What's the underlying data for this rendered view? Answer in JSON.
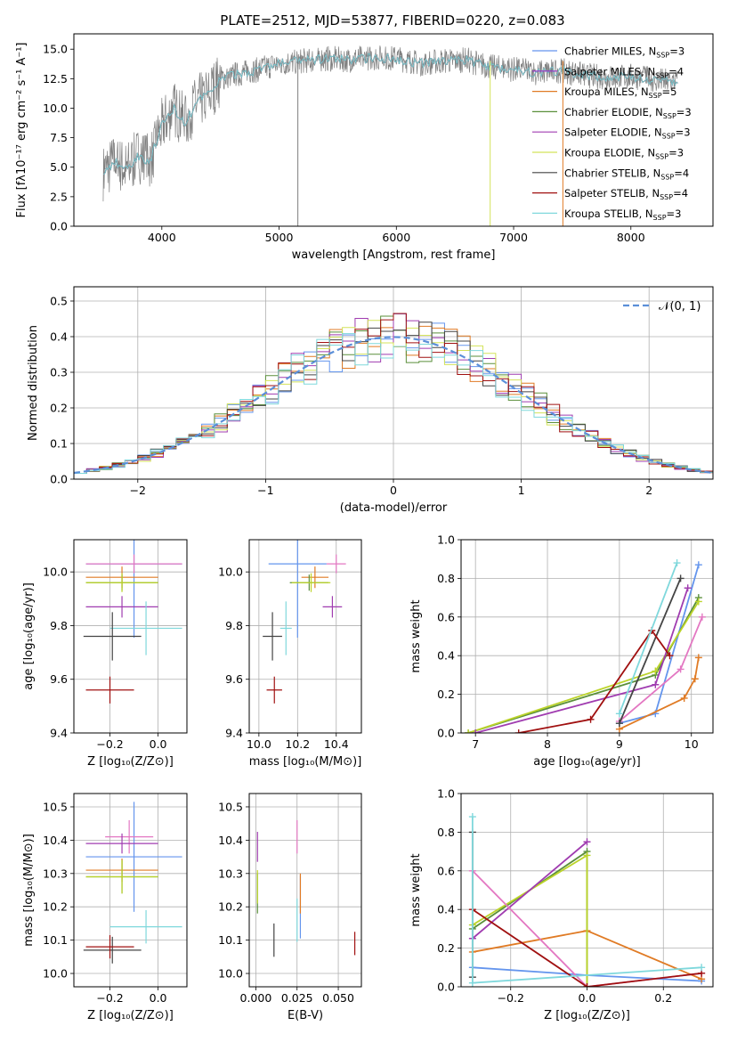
{
  "figure": {
    "title": "PLATE=2512, MJD=53877, FIBERID=0220, z=0.083"
  },
  "series_colors": {
    "Chabrier MILES": "#6495ED",
    "Salpeter MILES": "#9932CC",
    "Kroupa MILES": "#E07B25",
    "Chabrier ELODIE": "#5A8F3A",
    "Salpeter ELODIE": "#A03CB0",
    "Kroupa ELODIE": "#D4E35A",
    "Chabrier STELIB": "#444444",
    "Salpeter STELIB": "#A01010",
    "Kroupa STELIB": "#7FD8DC",
    "pink": "#E377C2",
    "yellowgreen": "#BCD42A"
  },
  "chart_data": [
    {
      "id": "spectrum",
      "type": "line",
      "title": "PLATE=2512, MJD=53877, FIBERID=0220, z=0.083",
      "xlabel": "wavelength [Angstrom, rest frame]",
      "ylabel": "Flux [fλ10⁻¹⁷ erg cm⁻² s⁻¹ A⁻¹]",
      "xlim": [
        3250,
        8700
      ],
      "ylim": [
        0,
        16.3
      ],
      "xticks": [
        4000,
        5000,
        6000,
        7000,
        8000
      ],
      "yticks": [
        0.0,
        2.5,
        5.0,
        7.5,
        10.0,
        12.5,
        15.0
      ],
      "grid": false,
      "legend_position": "right",
      "legend": [
        {
          "label": "Chabrier MILES, N",
          "sub": "SSP",
          "suffix": "=3",
          "color": "#6495ED"
        },
        {
          "label": "Salpeter MILES, N",
          "sub": "SSP",
          "suffix": "=4",
          "color": "#9932CC"
        },
        {
          "label": "Kroupa MILES, N",
          "sub": "SSP",
          "suffix": "=5",
          "color": "#E07B25"
        },
        {
          "label": "Chabrier ELODIE, N",
          "sub": "SSP",
          "suffix": "=3",
          "color": "#5A8F3A"
        },
        {
          "label": "Salpeter ELODIE, N",
          "sub": "SSP",
          "suffix": "=3",
          "color": "#A03CB0"
        },
        {
          "label": "Kroupa ELODIE, N",
          "sub": "SSP",
          "suffix": "=3",
          "color": "#D4E35A"
        },
        {
          "label": "Chabrier STELIB, N",
          "sub": "SSP",
          "suffix": "=4",
          "color": "#444444"
        },
        {
          "label": "Salpeter STELIB, N",
          "sub": "SSP",
          "suffix": "=4",
          "color": "#A01010"
        },
        {
          "label": "Kroupa STELIB, N",
          "sub": "SSP",
          "suffix": "=3",
          "color": "#7FD8DC"
        }
      ],
      "continuum": {
        "x": [
          3500,
          3600,
          3700,
          3800,
          3900,
          4000,
          4100,
          4200,
          4300,
          4400,
          4500,
          4600,
          4700,
          4800,
          4900,
          5000,
          5200,
          5400,
          5600,
          5800,
          6000,
          6200,
          6400,
          6600,
          6800,
          7000,
          7200,
          7400,
          7600,
          7800,
          8000,
          8200,
          8400
        ],
        "y": [
          4.5,
          5.5,
          4.8,
          6.0,
          5.5,
          8.5,
          10.0,
          8.8,
          10.5,
          11.2,
          12.5,
          12.8,
          13.0,
          13.2,
          13.5,
          13.8,
          14.0,
          14.2,
          14.1,
          14.3,
          14.2,
          13.8,
          14.0,
          14.1,
          13.5,
          13.3,
          13.0,
          13.2,
          12.8,
          12.6,
          12.7,
          12.4,
          12.2
        ]
      },
      "data_line_color": "#7f7f7f",
      "spikes": [
        {
          "x": 5160,
          "y": 0,
          "color": "#7f7f7f"
        },
        {
          "x": 6800,
          "y": 0,
          "color": "#D4E35A"
        },
        {
          "x": 7420,
          "y": 0,
          "color": "#E07B25"
        }
      ]
    },
    {
      "id": "residuals",
      "type": "line",
      "xlabel": "(data-model)/error",
      "ylabel": "Normed distribution",
      "xlim": [
        -2.5,
        2.5
      ],
      "ylim": [
        0,
        0.54
      ],
      "xticks": [
        -2,
        -1,
        0,
        1,
        2
      ],
      "yticks": [
        0.0,
        0.1,
        0.2,
        0.3,
        0.4,
        0.5
      ],
      "grid": true,
      "legend_position": "top-right",
      "legend_label": "𝒩(0, 1)",
      "normal_color": "#5B8FD8",
      "bin_width": 0.1,
      "histograms": [
        {
          "color": "#6495ED",
          "jitter": 1
        },
        {
          "color": "#E07B25",
          "jitter": 2
        },
        {
          "color": "#5A8F3A",
          "jitter": 3
        },
        {
          "color": "#A03CB0",
          "jitter": 4
        },
        {
          "color": "#D4E35A",
          "jitter": 5
        },
        {
          "color": "#444444",
          "jitter": 6
        },
        {
          "color": "#A01010",
          "jitter": 7
        },
        {
          "color": "#7FD8DC",
          "jitter": 8
        }
      ]
    },
    {
      "id": "age-vs-Z",
      "type": "scatter",
      "xlabel": "Z [log₁₀(Z/Z⊙)]",
      "ylabel": "age  [log₁₀(age/yr)]",
      "xlim": [
        -0.35,
        0.12
      ],
      "ylim": [
        9.4,
        10.12
      ],
      "xticks": [
        -0.2,
        0.0
      ],
      "yticks": [
        9.4,
        9.6,
        9.8,
        10.0
      ],
      "grid": true,
      "points": [
        {
          "x": -0.1,
          "xerr": 0.2,
          "y": 10.03,
          "yerr": 0.55,
          "color": "#6495ED"
        },
        {
          "x": -0.1,
          "xerr": 0.2,
          "y": 10.03,
          "yerr": 0.07,
          "color": "#E377C2"
        },
        {
          "x": -0.15,
          "xerr": 0.15,
          "y": 9.98,
          "yerr": 0.08,
          "color": "#E07B25"
        },
        {
          "x": -0.15,
          "xerr": 0.15,
          "y": 9.96,
          "yerr": 0.06,
          "color": "#5A8F3A"
        },
        {
          "x": -0.15,
          "xerr": 0.15,
          "y": 9.96,
          "yerr": 0.07,
          "color": "#BCD42A"
        },
        {
          "x": -0.15,
          "xerr": 0.15,
          "y": 9.87,
          "yerr": 0.08,
          "color": "#A03CB0"
        },
        {
          "x": -0.05,
          "xerr": 0.15,
          "y": 9.79,
          "yerr": 0.2,
          "color": "#7FD8DC"
        },
        {
          "x": -0.19,
          "xerr": 0.12,
          "y": 9.76,
          "yerr": 0.18,
          "color": "#444444"
        },
        {
          "x": -0.2,
          "xerr": 0.1,
          "y": 9.56,
          "yerr": 0.1,
          "color": "#A01010"
        }
      ]
    },
    {
      "id": "age-vs-mass",
      "type": "scatter",
      "xlabel": "mass [log₁₀(M/M⊙)]",
      "ylabel": "",
      "xlim": [
        9.95,
        10.53
      ],
      "ylim": [
        9.4,
        10.12
      ],
      "xticks": [
        10.0,
        10.2,
        10.4
      ],
      "yticks": [
        9.4,
        9.6,
        9.8,
        10.0
      ],
      "grid": true,
      "points": [
        {
          "x": 10.2,
          "xerr": 0.15,
          "y": 10.03,
          "yerr": 0.55,
          "color": "#6495ED"
        },
        {
          "x": 10.4,
          "xerr": 0.05,
          "y": 10.03,
          "yerr": 0.07,
          "color": "#E377C2"
        },
        {
          "x": 10.29,
          "xerr": 0.07,
          "y": 9.98,
          "yerr": 0.08,
          "color": "#E07B25"
        },
        {
          "x": 10.26,
          "xerr": 0.1,
          "y": 9.96,
          "yerr": 0.06,
          "color": "#5A8F3A"
        },
        {
          "x": 10.27,
          "xerr": 0.1,
          "y": 9.96,
          "yerr": 0.07,
          "color": "#BCD42A"
        },
        {
          "x": 10.38,
          "xerr": 0.05,
          "y": 9.87,
          "yerr": 0.08,
          "color": "#A03CB0"
        },
        {
          "x": 10.14,
          "xerr": 0.03,
          "y": 9.79,
          "yerr": 0.2,
          "color": "#7FD8DC"
        },
        {
          "x": 10.07,
          "xerr": 0.05,
          "y": 9.76,
          "yerr": 0.18,
          "color": "#444444"
        },
        {
          "x": 10.08,
          "xerr": 0.04,
          "y": 9.56,
          "yerr": 0.1,
          "color": "#A01010"
        }
      ]
    },
    {
      "id": "mass-weight-vs-age",
      "type": "line",
      "xlabel": "age  [log₁₀(age/yr)]",
      "ylabel": "mass weight",
      "xlim": [
        6.8,
        10.3
      ],
      "ylim": [
        0,
        1.0
      ],
      "xticks": [
        7,
        8,
        9,
        10
      ],
      "yticks": [
        0.0,
        0.2,
        0.4,
        0.6,
        0.8,
        1.0
      ],
      "grid": true,
      "series": [
        {
          "color": "#6495ED",
          "x": [
            9.0,
            9.5,
            10.1
          ],
          "y": [
            0.05,
            0.1,
            0.87
          ]
        },
        {
          "color": "#E07B25",
          "x": [
            9.0,
            9.9,
            10.05,
            10.1
          ],
          "y": [
            0.02,
            0.18,
            0.28,
            0.39
          ]
        },
        {
          "color": "#5A8F3A",
          "x": [
            6.9,
            9.5,
            10.1
          ],
          "y": [
            0.0,
            0.3,
            0.7
          ]
        },
        {
          "color": "#BCD42A",
          "x": [
            6.9,
            9.5,
            10.1
          ],
          "y": [
            0.0,
            0.32,
            0.68
          ]
        },
        {
          "color": "#A03CB0",
          "x": [
            7.0,
            9.5,
            9.95
          ],
          "y": [
            0.0,
            0.25,
            0.75
          ]
        },
        {
          "color": "#E377C2",
          "x": [
            9.0,
            9.85,
            10.15
          ],
          "y": [
            0.06,
            0.33,
            0.6
          ]
        },
        {
          "color": "#444444",
          "x": [
            9.0,
            9.85
          ],
          "y": [
            0.05,
            0.8
          ]
        },
        {
          "color": "#A01010",
          "x": [
            7.6,
            8.6,
            9.45,
            9.7
          ],
          "y": [
            0.0,
            0.07,
            0.53,
            0.4
          ]
        },
        {
          "color": "#7FD8DC",
          "x": [
            9.0,
            9.8
          ],
          "y": [
            0.1,
            0.88
          ]
        }
      ]
    },
    {
      "id": "mass-vs-Z",
      "type": "scatter",
      "xlabel": "Z [log₁₀(Z/Z⊙)]",
      "ylabel": "mass [log₁₀(M/M⊙)]",
      "xlim": [
        -0.35,
        0.12
      ],
      "ylim": [
        9.96,
        10.54
      ],
      "xticks": [
        -0.2,
        0.0
      ],
      "yticks": [
        10.0,
        10.1,
        10.2,
        10.3,
        10.4,
        10.5
      ],
      "grid": true,
      "points": [
        {
          "x": -0.1,
          "xerr": 0.2,
          "y": 10.35,
          "yerr": 0.33,
          "color": "#6495ED"
        },
        {
          "x": -0.12,
          "xerr": 0.1,
          "y": 10.41,
          "yerr": 0.1,
          "color": "#E377C2"
        },
        {
          "x": -0.15,
          "xerr": 0.15,
          "y": 10.31,
          "yerr": 0.07,
          "color": "#E07B25"
        },
        {
          "x": -0.15,
          "xerr": 0.15,
          "y": 10.29,
          "yerr": 0.1,
          "color": "#5A8F3A"
        },
        {
          "x": -0.15,
          "xerr": 0.15,
          "y": 10.29,
          "yerr": 0.1,
          "color": "#BCD42A"
        },
        {
          "x": -0.15,
          "xerr": 0.15,
          "y": 10.39,
          "yerr": 0.06,
          "color": "#A03CB0"
        },
        {
          "x": -0.05,
          "xerr": 0.15,
          "y": 10.14,
          "yerr": 0.1,
          "color": "#7FD8DC"
        },
        {
          "x": -0.19,
          "xerr": 0.12,
          "y": 10.07,
          "yerr": 0.08,
          "color": "#444444"
        },
        {
          "x": -0.2,
          "xerr": 0.1,
          "y": 10.08,
          "yerr": 0.07,
          "color": "#A01010"
        }
      ]
    },
    {
      "id": "mass-vs-ebv",
      "type": "scatter",
      "xlabel": "E(B-V)",
      "ylabel": "",
      "xlim": [
        -0.004,
        0.064
      ],
      "ylim": [
        9.96,
        10.54
      ],
      "xticks": [
        0.0,
        0.025,
        0.05
      ],
      "yticks": [
        10.0,
        10.1,
        10.2,
        10.3,
        10.4,
        10.5
      ],
      "grid": true,
      "points": [
        {
          "x": 0.027,
          "xerr": 0,
          "y": 10.2,
          "yerr": 0.19,
          "color": "#6495ED"
        },
        {
          "x": 0.025,
          "xerr": 0,
          "y": 10.41,
          "yerr": 0.1,
          "color": "#E377C2"
        },
        {
          "x": 0.027,
          "xerr": 0,
          "y": 10.24,
          "yerr": 0.12,
          "color": "#E07B25"
        },
        {
          "x": 0.001,
          "xerr": 0,
          "y": 10.24,
          "yerr": 0.12,
          "color": "#5A8F3A"
        },
        {
          "x": 0.001,
          "xerr": 0,
          "y": 10.26,
          "yerr": 0.1,
          "color": "#BCD42A"
        },
        {
          "x": 0.001,
          "xerr": 0,
          "y": 10.38,
          "yerr": 0.09,
          "color": "#A03CB0"
        },
        {
          "x": 0.025,
          "xerr": 0,
          "y": 10.16,
          "yerr": 0.13,
          "color": "#7FD8DC"
        },
        {
          "x": 0.011,
          "xerr": 0,
          "y": 10.1,
          "yerr": 0.1,
          "color": "#444444"
        },
        {
          "x": 0.06,
          "xerr": 0,
          "y": 10.09,
          "yerr": 0.07,
          "color": "#A01010"
        }
      ]
    },
    {
      "id": "mass-weight-vs-Z",
      "type": "line",
      "xlabel": "Z [log₁₀(Z/Z⊙)]",
      "ylabel": "mass weight",
      "xlim": [
        -0.33,
        0.33
      ],
      "ylim": [
        0,
        1.0
      ],
      "xticks": [
        -0.2,
        0.0,
        0.2
      ],
      "yticks": [
        0.0,
        0.2,
        0.4,
        0.6,
        0.8,
        1.0
      ],
      "grid": true,
      "series": [
        {
          "color": "#6495ED",
          "x": [
            -0.3,
            0.0,
            0.3
          ],
          "y": [
            0.1,
            0.06,
            0.03
          ]
        },
        {
          "color": "#E07B25",
          "x": [
            -0.3,
            0.0,
            0.3
          ],
          "y": [
            0.18,
            0.29,
            0.04
          ]
        },
        {
          "color": "#5A8F3A",
          "x": [
            -0.3,
            0.0,
            0.0
          ],
          "y": [
            0.3,
            0.7,
            0.0
          ]
        },
        {
          "color": "#BCD42A",
          "x": [
            -0.3,
            0.0,
            0.0
          ],
          "y": [
            0.32,
            0.68,
            0.0
          ]
        },
        {
          "color": "#A03CB0",
          "x": [
            -0.3,
            0.0
          ],
          "y": [
            0.25,
            0.75
          ]
        },
        {
          "color": "#E377C2",
          "x": [
            -0.3,
            0.0,
            0.3
          ],
          "y": [
            0.6,
            0.0,
            0.07
          ]
        },
        {
          "color": "#444444",
          "x": [
            -0.3,
            -0.3
          ],
          "y": [
            0.8,
            0.05
          ]
        },
        {
          "color": "#A01010",
          "x": [
            -0.3,
            0.0,
            0.3
          ],
          "y": [
            0.4,
            0.0,
            0.07
          ]
        },
        {
          "color": "#7FD8DC",
          "x": [
            -0.3,
            -0.3,
            0.3
          ],
          "y": [
            0.88,
            0.02,
            0.1
          ]
        }
      ]
    }
  ]
}
